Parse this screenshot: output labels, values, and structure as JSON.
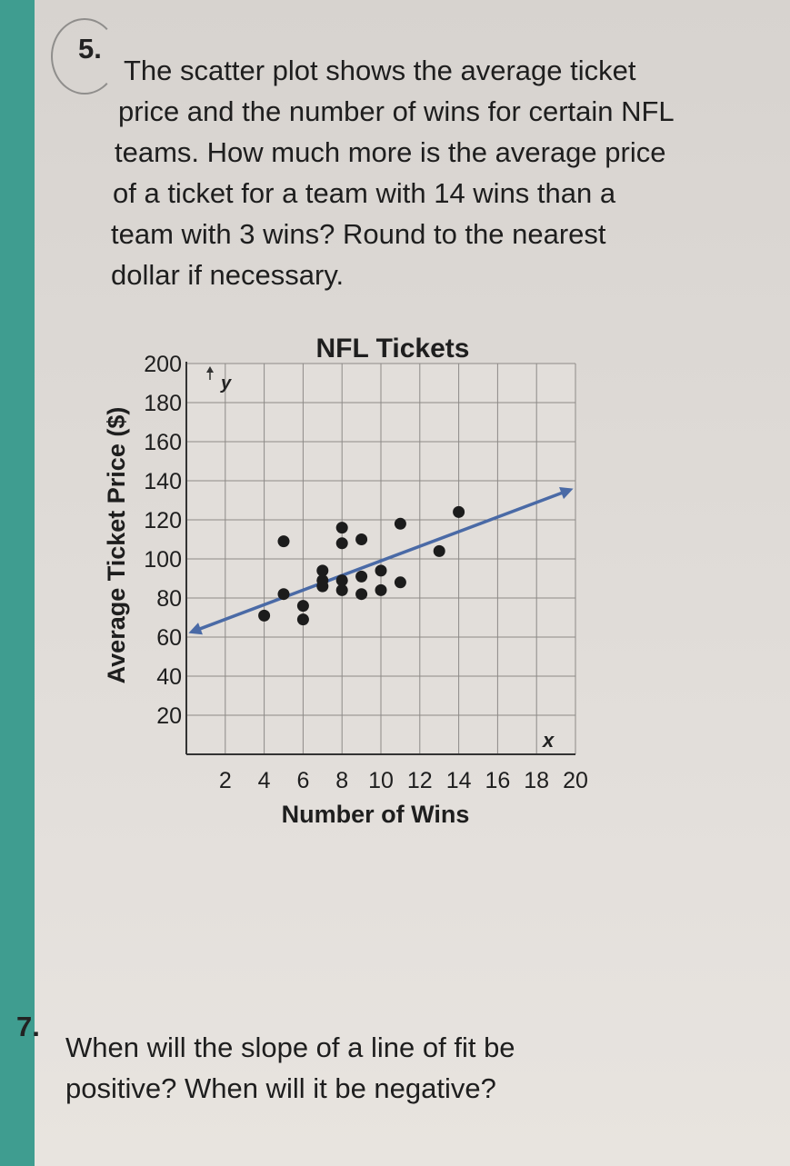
{
  "question5": {
    "number": "5.",
    "lines": [
      "The scatter plot shows the average ticket",
      "price and the number of wins for certain NFL",
      "teams. How much more is the average price",
      "of a ticket for a team with 14 wins than a",
      "team with 3 wins? Round to the nearest",
      "dollar if necessary."
    ]
  },
  "question7": {
    "number": "7.",
    "lines": [
      "When will the slope of a line of fit be",
      "positive? When will it be negative?"
    ]
  },
  "chart_data": {
    "type": "scatter",
    "title": "NFL Tickets",
    "xlabel": "Number of Wins",
    "ylabel": "Average Ticket Price ($)",
    "x_axis_letter": "x",
    "y_axis_letter": "y",
    "xlim": [
      0,
      20
    ],
    "ylim": [
      0,
      200
    ],
    "x_ticks": [
      2,
      4,
      6,
      8,
      10,
      12,
      14,
      16,
      18,
      20
    ],
    "y_ticks": [
      20,
      40,
      60,
      80,
      100,
      120,
      140,
      160,
      180,
      200
    ],
    "grid": true,
    "points": [
      {
        "x": 4,
        "y": 71
      },
      {
        "x": 5,
        "y": 82
      },
      {
        "x": 5,
        "y": 109
      },
      {
        "x": 6,
        "y": 69
      },
      {
        "x": 6,
        "y": 76
      },
      {
        "x": 7,
        "y": 86
      },
      {
        "x": 7,
        "y": 89
      },
      {
        "x": 7,
        "y": 94
      },
      {
        "x": 8,
        "y": 84
      },
      {
        "x": 8,
        "y": 89
      },
      {
        "x": 8,
        "y": 108
      },
      {
        "x": 8,
        "y": 116
      },
      {
        "x": 9,
        "y": 82
      },
      {
        "x": 9,
        "y": 91
      },
      {
        "x": 9,
        "y": 110
      },
      {
        "x": 10,
        "y": 84
      },
      {
        "x": 10,
        "y": 94
      },
      {
        "x": 11,
        "y": 88
      },
      {
        "x": 11,
        "y": 118
      },
      {
        "x": 13,
        "y": 104
      },
      {
        "x": 14,
        "y": 124
      }
    ],
    "trend_line": {
      "x": [
        0,
        20
      ],
      "y": [
        63,
        135
      ],
      "color": "#4a6aa6"
    },
    "point_color": "#1c1c1c"
  }
}
